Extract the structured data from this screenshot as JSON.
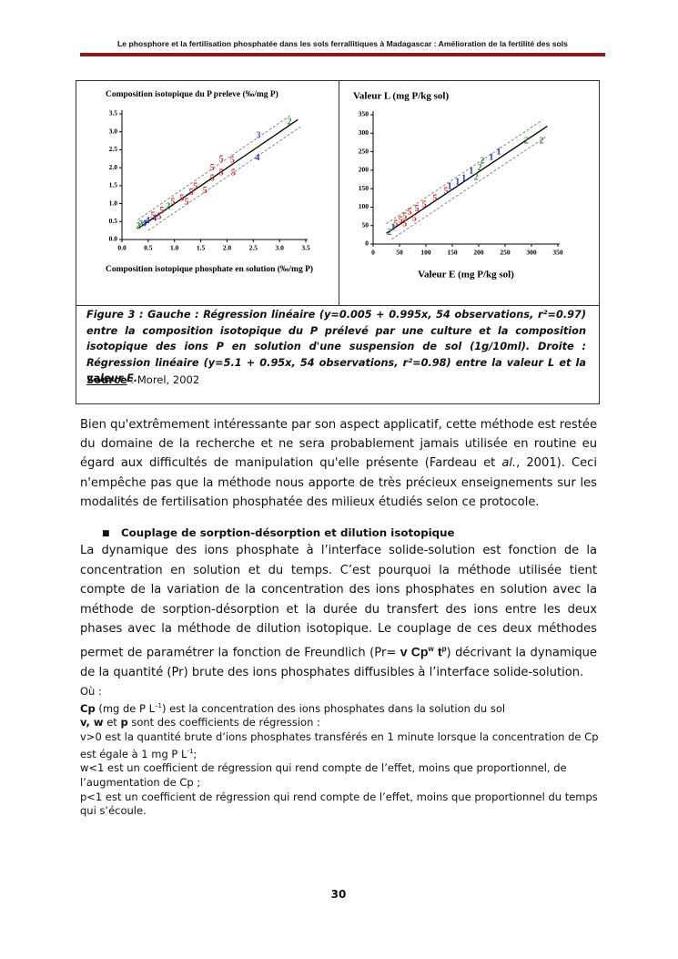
{
  "header": {
    "title": "Le phosphore et la fertilisation phosphatée dans les sols ferrallitiques à Madagascar : Amélioration de la fertilité des sols"
  },
  "chart_data": [
    {
      "type": "scatter",
      "title": "Composition isotopique du P preleve (‰/mg P)",
      "x_label": "Composition isotopique phosphate en solution (‰/mg P)",
      "xlim": [
        0,
        3.5
      ],
      "ylim": [
        0,
        3.5
      ],
      "xticks": [
        {
          "value": 0,
          "label": "0.0"
        },
        0.5,
        {
          "value": 1,
          "label": "1.0"
        },
        1.5,
        {
          "value": 2,
          "label": "2.0"
        },
        2.5,
        {
          "value": 3,
          "label": "3.0"
        },
        3.5
      ],
      "yticks": [
        {
          "value": 0,
          "label": "0.0"
        },
        0.5,
        {
          "value": 1,
          "label": "1.0"
        },
        1.5,
        {
          "value": 2,
          "label": "2.0"
        },
        2.5,
        {
          "value": 3,
          "label": "3.0"
        },
        3.5
      ],
      "series": [
        {
          "name": "2",
          "color": "#2e8b2e",
          "x": [
            3.19,
            0.88,
            0.31,
            0.36
          ],
          "values": [
            3.27,
            0.91,
            0.36,
            0.41
          ]
        },
        {
          "name": "3",
          "color": "#7b3fa0",
          "x": [
            2.6
          ],
          "values": [
            2.89
          ]
        },
        {
          "name": "4",
          "color": "#2233cc",
          "x": [
            2.58,
            0.62,
            0.49,
            0.42
          ],
          "values": [
            2.26,
            0.58,
            0.51,
            0.43
          ]
        },
        {
          "name": "5",
          "color": "#dd2222",
          "x": [
            1.89,
            2.1,
            1.72,
            1.89,
            2.12,
            1.72,
            1.4,
            1.58,
            1.32,
            1.14,
            0.97,
            1.23,
            0.76,
            0.59,
            0.71
          ],
          "values": [
            2.23,
            2.2,
            1.98,
            1.85,
            1.85,
            1.7,
            1.47,
            1.35,
            1.3,
            1.14,
            1.04,
            1.04,
            0.79,
            0.66,
            0.63
          ]
        }
      ],
      "fit": {
        "x": [
          0.3,
          3.35
        ],
        "y": [
          0.3,
          3.34
        ]
      },
      "bands": [
        {
          "x": [
            0.3,
            3.2
          ],
          "y": [
            0.55,
            3.45
          ]
        },
        {
          "x": [
            0.5,
            3.4
          ],
          "y": [
            0.25,
            3.14
          ]
        }
      ]
    },
    {
      "type": "scatter",
      "title": "Valeur L (mg P/kg sol)",
      "x_label": "Valeur E (mg P/kg sol)",
      "xlim": [
        0,
        350
      ],
      "ylim": [
        0,
        350
      ],
      "xticks": [
        0,
        50,
        100,
        150,
        200,
        250,
        300,
        350
      ],
      "yticks": [
        0,
        50,
        100,
        150,
        200,
        250,
        300,
        350
      ],
      "series": [
        {
          "name": "1",
          "color": "#2233cc",
          "x": [
            238,
            224,
            186,
            172,
            160,
            145,
            38
          ],
          "values": [
            249,
            234,
            197,
            177,
            167,
            155,
            44
          ]
        },
        {
          "name": "2",
          "color": "#2e8b2e",
          "x": [
            319,
            290,
            207,
            195,
            202,
            31
          ],
          "values": [
            278,
            278,
            224,
            180,
            205,
            30
          ]
        },
        {
          "name": "5",
          "color": "#dd2222",
          "x": [
            138,
            117,
            97,
            83,
            69,
            60,
            52,
            43,
            60,
            78
          ],
          "values": [
            143,
            123,
            106,
            94,
            86,
            74,
            64,
            54,
            54,
            69
          ]
        }
      ],
      "fit": {
        "x": [
          25,
          330
        ],
        "y": [
          29,
          319
        ]
      },
      "bands": [
        {
          "x": [
            25,
            320
          ],
          "y": [
            55,
            335
          ]
        },
        {
          "x": [
            35,
            330
          ],
          "y": [
            13,
            293
          ]
        }
      ]
    }
  ],
  "figure": {
    "caption": "Figure 3 : Gauche : Régression linéaire (y=0.005 + 0.995x, 54 observations, r²=0.97) entre la composition isotopique du P prélevé par une culture et la composition isotopique des ions P en solution d'une suspension de sol (1g/10ml). Droite : Régression linéaire (y=5.1 + 0.95x, 54 observations, r²=0.98) entre la valeur L et la valeur E.",
    "source_label": "Source",
    "source_text": " : Morel, 2002"
  },
  "paragraph1": [
    "Bien qu'extrêmement intéressante par son aspect applicatif, cette méthode est restée du domaine de la recherche et ne sera probablement jamais utilisée en routine eu égard aux difficultés de manipulation qu'elle présente (Fardeau et ",
    "al.",
    ", 2001). Ceci n'empêche pas que la méthode nous apporte de très précieux enseignements sur les modalités de fertilisation phosphatée des milieux étudiés selon ce protocole."
  ],
  "section_heading": "Couplage de sorption-désorption et dilution isotopique",
  "paragraph2": [
    "La dynamique des ions phosphate à l’interface solide-solution est fonction de la concentration en solution et du temps. C’est pourquoi la méthode utilisée tient compte de la variation de la concentration des ions phosphates en solution avec la méthode de sorption-désorption et la durée du transfert des ions entre les deux phases avec la méthode de dilution isotopique. Le couplage de ces deux méthodes permet de paramétrer la fonction de Freundlich (Pr= ",
    "v Cp",
    "w",
    " t",
    "p",
    ") décrivant la dynamique de la quantité (Pr)  brute des ions phosphates diffusibles à l’interface solide-solution."
  ],
  "notes": {
    "intro": "Où :",
    "items": [
      [
        "Cp",
        " (mg de P L",
        "–1",
        ") est la concentration des ions phosphates dans la solution du sol"
      ],
      [
        "v, w",
        " et ",
        "p",
        " sont des coefficients de régression :"
      ],
      [
        "v>0 est la quantité brute d’ions phosphates transférés en 1 minute lorsque la concentration de Cp est égale à 1 mg P L",
        "-1",
        ";"
      ],
      [
        "w<1 est un coefficient de régression qui rend compte de l’effet, moins que proportionnel, de l’augmentation de Cp ;"
      ],
      [
        "p<1 est un coefficient de régression qui rend compte de l’effet, moins que proportionnel du temps qui s’écoule."
      ]
    ]
  },
  "page_number": "30"
}
